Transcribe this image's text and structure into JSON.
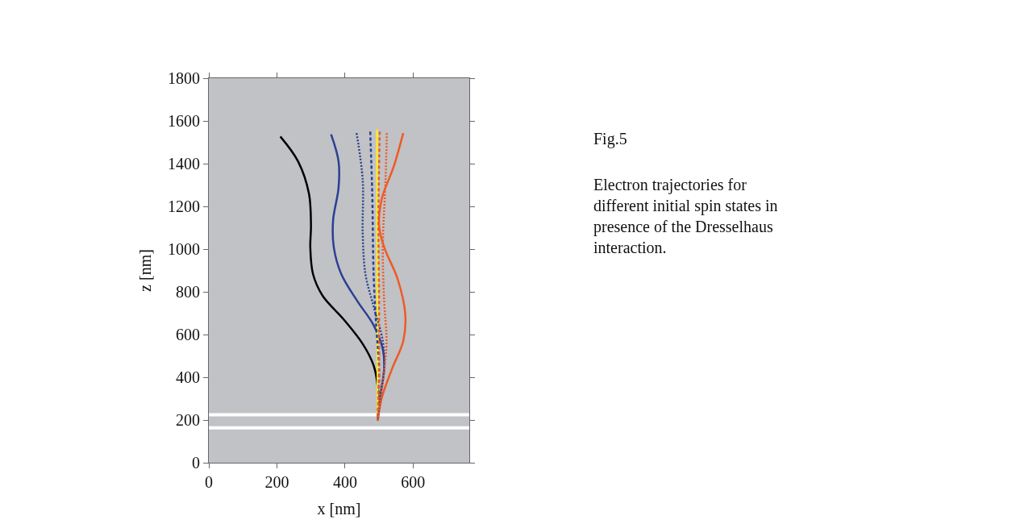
{
  "chart_data": {
    "type": "line",
    "xlabel": "x [nm]",
    "ylabel": "z [nm]",
    "xlim": [
      0,
      765
    ],
    "xticks": [
      0,
      200,
      400,
      600
    ],
    "ylim": [
      0,
      1800
    ],
    "yticks": [
      0,
      200,
      400,
      600,
      800,
      1000,
      1200,
      1400,
      1600,
      1800
    ],
    "grid": false,
    "marker": "none",
    "series": [
      {
        "color": "#000000",
        "line_style": "solid",
        "x": [
          210,
          262,
          294,
          300,
          298,
          306,
          334,
          397,
          452,
          484,
          496,
          496
        ],
        "values": [
          1527,
          1411,
          1260,
          1109,
          1009,
          883,
          782,
          669,
          556,
          455,
          355,
          197
        ]
      },
      {
        "color": "#2b3f93",
        "line_style": "solid",
        "x": [
          359,
          381,
          381,
          365,
          367,
          389,
          436,
          484,
          511,
          515,
          504,
          496
        ],
        "values": [
          1537,
          1411,
          1286,
          1135,
          1009,
          883,
          757,
          644,
          531,
          443,
          317,
          197
        ]
      },
      {
        "color": "#2b3f93",
        "line_style": "dotted",
        "x": [
          434,
          452,
          452,
          460,
          484,
          511,
          515,
          504,
          496
        ],
        "values": [
          1543,
          1323,
          1072,
          883,
          732,
          569,
          443,
          304,
          197
        ]
      },
      {
        "color": "#2b3f93",
        "line_style": "dashed",
        "x": [
          474,
          480,
          484,
          492,
          500,
          496
        ],
        "values": [
          1550,
          1260,
          883,
          631,
          443,
          197
        ]
      },
      {
        "color": "#f05a24",
        "line_style": "dashed",
        "x": [
          502,
          498,
          500,
          500,
          496
        ],
        "values": [
          1550,
          1135,
          757,
          443,
          197
        ]
      },
      {
        "color": "#f5f02a",
        "line_style": "solid",
        "x": [
          494,
          496
        ],
        "values": [
          1559,
          197
        ]
      },
      {
        "color": "#f05a24",
        "line_style": "dotted",
        "x": [
          523,
          519,
          511,
          515,
          522,
          515,
          504,
          496
        ],
        "values": [
          1543,
          1323,
          1009,
          757,
          569,
          430,
          304,
          197
        ]
      },
      {
        "color": "#f05a24",
        "line_style": "solid",
        "x": [
          571,
          543,
          508,
          500,
          515,
          555,
          577,
          571,
          539,
          508,
          496
        ],
        "values": [
          1543,
          1386,
          1235,
          1109,
          1009,
          858,
          694,
          569,
          443,
          304,
          197
        ]
      }
    ],
    "ref_lines": [
      {
        "axis": "y",
        "value": 225,
        "color": "#ffffff"
      },
      {
        "axis": "y",
        "value": 163,
        "color": "#ffffff"
      }
    ],
    "annotations": [
      "Fig.5",
      "Electron trajectories for\ndifferent initial spin states in\npresence of the Dresselhaus\ninteraction."
    ]
  }
}
